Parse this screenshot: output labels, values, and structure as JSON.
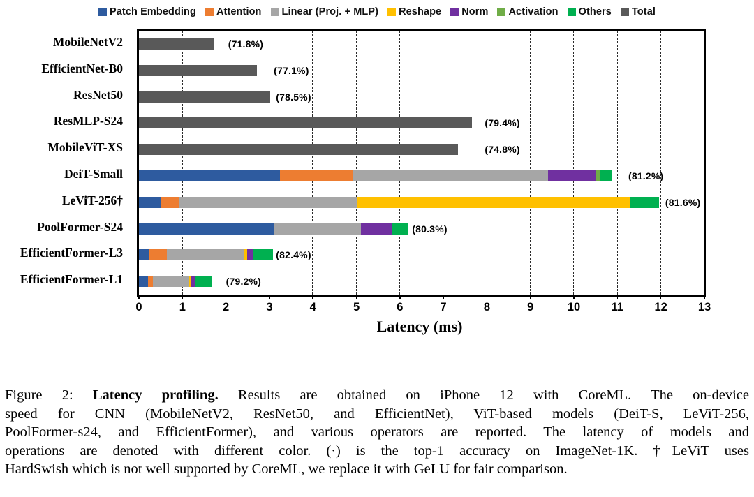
{
  "colors": {
    "patch_embedding": "#2E5B9F",
    "attention": "#ED7D31",
    "linear": "#A6A6A6",
    "reshape": "#FFC000",
    "norm": "#7030A0",
    "activation": "#70AD47",
    "others": "#00B050",
    "total": "#595959"
  },
  "legend": [
    {
      "key": "patch_embedding",
      "label": "Patch Embedding"
    },
    {
      "key": "attention",
      "label": "Attention"
    },
    {
      "key": "linear",
      "label": "Linear (Proj. + MLP)"
    },
    {
      "key": "reshape",
      "label": "Reshape"
    },
    {
      "key": "norm",
      "label": "Norm"
    },
    {
      "key": "activation",
      "label": "Activation"
    },
    {
      "key": "others",
      "label": "Others"
    },
    {
      "key": "total",
      "label": "Total"
    }
  ],
  "chart_data": {
    "type": "bar",
    "orientation": "horizontal",
    "stacked": true,
    "title": "",
    "xlabel": "Latency (ms)",
    "ylabel": "",
    "xlim": [
      0,
      13
    ],
    "xticks": [
      0,
      1,
      2,
      3,
      4,
      5,
      6,
      7,
      8,
      9,
      10,
      11,
      12,
      13
    ],
    "grid": "vertical-dashed-at-integers",
    "legend_position": "top",
    "rows": [
      {
        "model": "MobileNetV2",
        "accuracy_label": "(71.8%)",
        "label_x": 2.05,
        "segments": [
          {
            "key": "total",
            "value": 1.73
          }
        ]
      },
      {
        "model": "EfficientNet-B0",
        "accuracy_label": "(77.1%)",
        "label_x": 3.1,
        "segments": [
          {
            "key": "total",
            "value": 2.71
          }
        ]
      },
      {
        "model": "ResNet50",
        "accuracy_label": "(78.5%)",
        "label_x": 3.15,
        "segments": [
          {
            "key": "total",
            "value": 3.02
          }
        ]
      },
      {
        "model": "ResMLP-S24",
        "accuracy_label": "(79.4%)",
        "label_x": 7.95,
        "segments": [
          {
            "key": "total",
            "value": 7.65
          }
        ]
      },
      {
        "model": "MobileViT-XS",
        "accuracy_label": "(74.8%)",
        "label_x": 7.95,
        "segments": [
          {
            "key": "total",
            "value": 7.34
          }
        ]
      },
      {
        "model": "DeiT-Small",
        "accuracy_label": "(81.2%)",
        "label_x": 11.25,
        "segments": [
          {
            "key": "patch_embedding",
            "value": 3.24
          },
          {
            "key": "attention",
            "value": 1.68
          },
          {
            "key": "linear",
            "value": 4.48
          },
          {
            "key": "norm",
            "value": 1.1
          },
          {
            "key": "activation",
            "value": 0.1
          },
          {
            "key": "others",
            "value": 0.27
          }
        ]
      },
      {
        "model": "LeViT-256†",
        "accuracy_label": "(81.6%)",
        "label_x": 12.1,
        "segments": [
          {
            "key": "patch_embedding",
            "value": 0.51
          },
          {
            "key": "attention",
            "value": 0.41
          },
          {
            "key": "linear",
            "value": 4.11
          },
          {
            "key": "reshape",
            "value": 6.27
          },
          {
            "key": "others",
            "value": 0.65
          }
        ]
      },
      {
        "model": "PoolFormer-S24",
        "accuracy_label": "(80.3%)",
        "label_x": 6.28,
        "segments": [
          {
            "key": "patch_embedding",
            "value": 3.12
          },
          {
            "key": "linear",
            "value": 1.98
          },
          {
            "key": "norm",
            "value": 0.73
          },
          {
            "key": "others",
            "value": 0.36
          }
        ]
      },
      {
        "model": "EfficientFormer-L3",
        "accuracy_label": "(82.4%)",
        "label_x": 3.15,
        "segments": [
          {
            "key": "patch_embedding",
            "value": 0.22
          },
          {
            "key": "attention",
            "value": 0.42
          },
          {
            "key": "linear",
            "value": 1.76
          },
          {
            "key": "reshape",
            "value": 0.08
          },
          {
            "key": "norm",
            "value": 0.16
          },
          {
            "key": "others",
            "value": 0.44
          }
        ]
      },
      {
        "model": "EfficientFormer-L1",
        "accuracy_label": "(79.2%)",
        "label_x": 2.0,
        "segments": [
          {
            "key": "patch_embedding",
            "value": 0.21
          },
          {
            "key": "attention",
            "value": 0.11
          },
          {
            "key": "linear",
            "value": 0.83
          },
          {
            "key": "reshape",
            "value": 0.06
          },
          {
            "key": "norm",
            "value": 0.07
          },
          {
            "key": "others",
            "value": 0.4
          }
        ]
      }
    ]
  },
  "caption": {
    "lines": [
      {
        "parts": [
          {
            "text": "Figure 2: ",
            "bold": false
          },
          {
            "text": "Latency profiling.",
            "bold": true
          },
          {
            "text": " Results are obtained on iPhone 12 with CoreML. The on-device",
            "bold": false
          }
        ]
      },
      {
        "parts": [
          {
            "text": "speed for CNN (MobileNetV2, ResNet50, and EfficientNet), ViT-based models (DeiT-S, LeViT-256,",
            "bold": false
          }
        ]
      },
      {
        "parts": [
          {
            "text": "PoolFormer-s24, and EfficientFormer), and various operators are reported. The latency of models and",
            "bold": false
          }
        ]
      },
      {
        "parts": [
          {
            "text": "operations are denoted with different color. (·) is the top-1 accuracy on ImageNet-1K. †LeViT uses",
            "bold": false
          }
        ]
      },
      {
        "parts": [
          {
            "text": "HardSwish which is not well supported by CoreML, we replace it with GeLU for fair comparison.",
            "bold": false
          }
        ]
      }
    ]
  }
}
